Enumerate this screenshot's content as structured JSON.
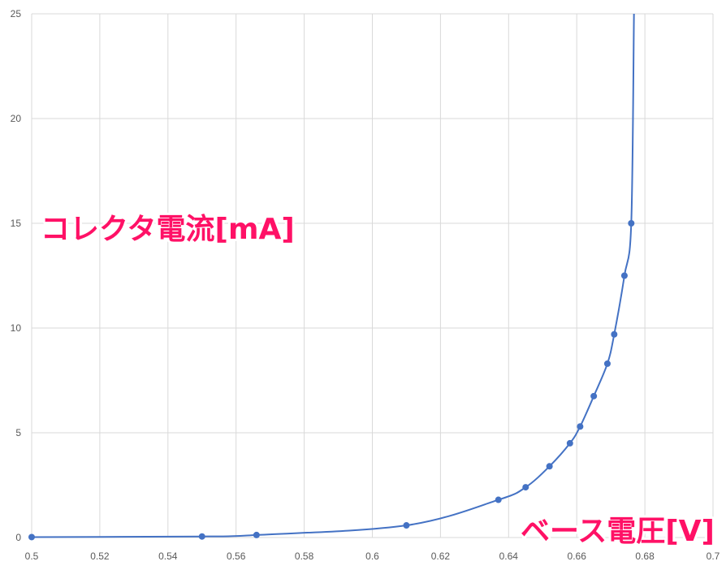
{
  "chart_data": {
    "type": "scatter",
    "title": "",
    "xlabel": "ベース電圧[V]",
    "ylabel": "コレクタ電流[mA]",
    "xlim": [
      0.5,
      0.7
    ],
    "ylim": [
      0,
      25
    ],
    "grid": true,
    "line": "smooth",
    "colors": {
      "series": "#4472c4",
      "label": "#ff1166",
      "grid": "#d9d9d9",
      "tick": "#595959"
    },
    "x_ticks": [
      "0.5",
      "0.52",
      "0.54",
      "0.56",
      "0.58",
      "0.6",
      "0.62",
      "0.64",
      "0.66",
      "0.68",
      "0.7"
    ],
    "y_ticks": [
      "0",
      "5",
      "10",
      "15",
      "20",
      "25"
    ],
    "series": [
      {
        "x": [
          0.5,
          0.55,
          0.566,
          0.61,
          0.637,
          0.645,
          0.652,
          0.658,
          0.661,
          0.665,
          0.669,
          0.671,
          0.674,
          0.676
        ],
        "y": [
          0.02,
          0.05,
          0.12,
          0.58,
          1.8,
          2.4,
          3.4,
          4.5,
          5.3,
          6.75,
          8.3,
          9.7,
          12.5,
          15.0
        ]
      }
    ],
    "tail_to_top": {
      "x": 0.6768,
      "y": 25
    }
  }
}
